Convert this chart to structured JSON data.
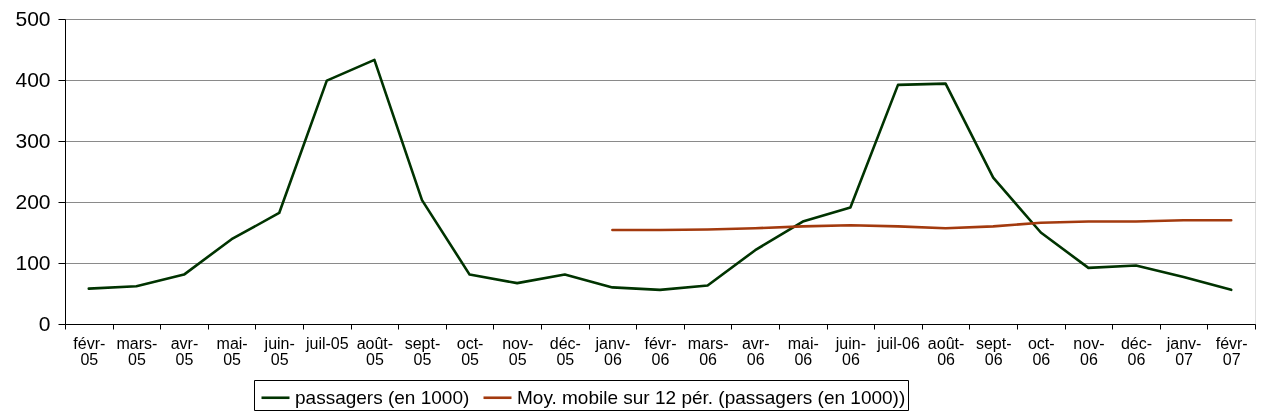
{
  "chart_data": {
    "type": "line",
    "categories": [
      "févr-05",
      "mars-05",
      "avr-05",
      "mai-05",
      "juin-05",
      "juil-05",
      "août-05",
      "sept-05",
      "oct-05",
      "nov-05",
      "déc-05",
      "janv-06",
      "févr-06",
      "mars-06",
      "avr-06",
      "mai-06",
      "juin-06",
      "juil-06",
      "août-06",
      "sept-06",
      "oct-06",
      "nov-06",
      "déc-06",
      "janv-07",
      "févr-07"
    ],
    "series": [
      {
        "name": "passagers (en 1000)",
        "color": "#003300",
        "values": [
          58,
          62,
          81,
          139,
          182,
          399,
          433,
          203,
          81,
          67,
          81,
          60,
          56,
          63,
          121,
          168,
          191,
          392,
          394,
          240,
          150,
          92,
          96,
          77,
          56
        ]
      },
      {
        "name": "Moy. mobile sur 12 pér. (passagers (en 1000))",
        "color": "#a33a0e",
        "values": [
          null,
          null,
          null,
          null,
          null,
          null,
          null,
          null,
          null,
          null,
          null,
          154,
          154,
          155,
          157,
          160,
          162,
          160,
          157,
          160,
          166,
          168,
          168,
          170,
          170
        ]
      }
    ],
    "ylim": [
      0,
      500
    ],
    "yticks": [
      0,
      100,
      200,
      300,
      400,
      500
    ],
    "grid": "y",
    "legend": "bottom"
  }
}
